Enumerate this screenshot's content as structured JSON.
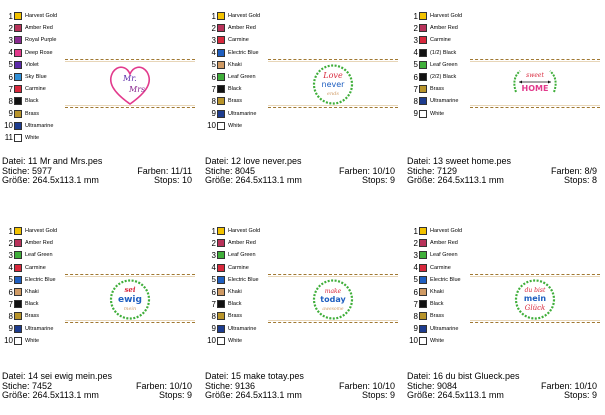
{
  "cards": [
    {
      "threads": [
        {
          "num": "1",
          "name": "Harvest Gold",
          "color": "#f2c200"
        },
        {
          "num": "2",
          "name": "Amber Red",
          "color": "#b8325a"
        },
        {
          "num": "3",
          "name": "Royal Purple",
          "color": "#8a2a8f"
        },
        {
          "num": "4",
          "name": "Deep Rose",
          "color": "#e23a8c"
        },
        {
          "num": "5",
          "name": "Violet",
          "color": "#5b2aa8"
        },
        {
          "num": "6",
          "name": "Sky Blue",
          "color": "#2f8fd6"
        },
        {
          "num": "7",
          "name": "Carmine",
          "color": "#d8283c"
        },
        {
          "num": "8",
          "name": "Black",
          "color": "#111111"
        },
        {
          "num": "9",
          "name": "Brass",
          "color": "#b8942a"
        },
        {
          "num": "10",
          "name": "Ultramarine",
          "color": "#1d3c8f"
        },
        {
          "num": "11",
          "name": "White",
          "color": "#ffffff"
        }
      ],
      "design_text": [
        "Mr.",
        "Mrs"
      ],
      "file_label": "Datei: 11 Mr and Mrs.pes",
      "stiche": "Stiche: 5977",
      "farben": "Farben: 11/11",
      "groesse": "Größe: 264.5x113.1 mm",
      "stops": "Stops: 10"
    },
    {
      "threads": [
        {
          "num": "1",
          "name": "Harvest Gold",
          "color": "#f2c200"
        },
        {
          "num": "2",
          "name": "Amber Red",
          "color": "#b8325a"
        },
        {
          "num": "3",
          "name": "Carmine",
          "color": "#d8283c"
        },
        {
          "num": "4",
          "name": "Electric Blue",
          "color": "#1f5fc0"
        },
        {
          "num": "5",
          "name": "Khaki",
          "color": "#cf9a64"
        },
        {
          "num": "6",
          "name": "Leaf Green",
          "color": "#3fae3a"
        },
        {
          "num": "7",
          "name": "Black",
          "color": "#111111"
        },
        {
          "num": "8",
          "name": "Brass",
          "color": "#b8942a"
        },
        {
          "num": "9",
          "name": "Ultramarine",
          "color": "#1d3c8f"
        },
        {
          "num": "10",
          "name": "White",
          "color": "#ffffff"
        }
      ],
      "design_text": [
        "Love",
        "never",
        "ends"
      ],
      "file_label": "Datei: 12 love never.pes",
      "stiche": "Stiche: 8045",
      "farben": "Farben: 10/10",
      "groesse": "Größe: 264.5x113.1 mm",
      "stops": "Stops: 9"
    },
    {
      "threads": [
        {
          "num": "1",
          "name": "Harvest Gold",
          "color": "#f2c200"
        },
        {
          "num": "2",
          "name": "Amber Red",
          "color": "#b8325a"
        },
        {
          "num": "3",
          "name": "Carmine",
          "color": "#d8283c"
        },
        {
          "num": "4",
          "name": "(1/2) Black",
          "color": "#111111"
        },
        {
          "num": "5",
          "name": "Leaf Green",
          "color": "#3fae3a"
        },
        {
          "num": "6",
          "name": "(2/2) Black",
          "color": "#111111"
        },
        {
          "num": "7",
          "name": "Brass",
          "color": "#b8942a"
        },
        {
          "num": "8",
          "name": "Ultramarine",
          "color": "#1d3c8f"
        },
        {
          "num": "9",
          "name": "White",
          "color": "#ffffff"
        }
      ],
      "design_text": [
        "sweet",
        "HOME"
      ],
      "file_label": "Datei: 13 sweet home.pes",
      "stiche": "Stiche: 7129",
      "farben": "Farben: 8/9",
      "groesse": "Größe: 264.5x113.1 mm",
      "stops": "Stops: 8"
    },
    {
      "threads": [
        {
          "num": "1",
          "name": "Harvest Gold",
          "color": "#f2c200"
        },
        {
          "num": "2",
          "name": "Amber Red",
          "color": "#b8325a"
        },
        {
          "num": "3",
          "name": "Leaf Green",
          "color": "#3fae3a"
        },
        {
          "num": "4",
          "name": "Carmine",
          "color": "#d8283c"
        },
        {
          "num": "5",
          "name": "Electric Blue",
          "color": "#1f5fc0"
        },
        {
          "num": "6",
          "name": "Khaki",
          "color": "#cf9a64"
        },
        {
          "num": "7",
          "name": "Black",
          "color": "#111111"
        },
        {
          "num": "8",
          "name": "Brass",
          "color": "#b8942a"
        },
        {
          "num": "9",
          "name": "Ultramarine",
          "color": "#1d3c8f"
        },
        {
          "num": "10",
          "name": "White",
          "color": "#ffffff"
        }
      ],
      "design_text": [
        "sei",
        "ewig",
        "mein"
      ],
      "file_label": "Datei: 14 sei ewig mein.pes",
      "stiche": "Stiche: 7452",
      "farben": "Farben: 10/10",
      "groesse": "Größe: 264.5x113.1 mm",
      "stops": "Stops: 9"
    },
    {
      "threads": [
        {
          "num": "1",
          "name": "Harvest Gold",
          "color": "#f2c200"
        },
        {
          "num": "2",
          "name": "Amber Red",
          "color": "#b8325a"
        },
        {
          "num": "3",
          "name": "Leaf Green",
          "color": "#3fae3a"
        },
        {
          "num": "4",
          "name": "Carmine",
          "color": "#d8283c"
        },
        {
          "num": "5",
          "name": "Electric Blue",
          "color": "#1f5fc0"
        },
        {
          "num": "6",
          "name": "Khaki",
          "color": "#cf9a64"
        },
        {
          "num": "7",
          "name": "Black",
          "color": "#111111"
        },
        {
          "num": "8",
          "name": "Brass",
          "color": "#b8942a"
        },
        {
          "num": "9",
          "name": "Ultramarine",
          "color": "#1d3c8f"
        },
        {
          "num": "10",
          "name": "White",
          "color": "#ffffff"
        }
      ],
      "design_text": [
        "make",
        "today",
        "awesome"
      ],
      "file_label": "Datei: 15 make totay.pes",
      "stiche": "Stiche: 9136",
      "farben": "Farben: 10/10",
      "groesse": "Größe: 264.5x113.1 mm",
      "stops": "Stops: 9"
    },
    {
      "threads": [
        {
          "num": "1",
          "name": "Harvest Gold",
          "color": "#f2c200"
        },
        {
          "num": "2",
          "name": "Amber Red",
          "color": "#b8325a"
        },
        {
          "num": "3",
          "name": "Leaf Green",
          "color": "#3fae3a"
        },
        {
          "num": "4",
          "name": "Carmine",
          "color": "#d8283c"
        },
        {
          "num": "5",
          "name": "Electric Blue",
          "color": "#1f5fc0"
        },
        {
          "num": "6",
          "name": "Khaki",
          "color": "#cf9a64"
        },
        {
          "num": "7",
          "name": "Black",
          "color": "#111111"
        },
        {
          "num": "8",
          "name": "Brass",
          "color": "#b8942a"
        },
        {
          "num": "9",
          "name": "Ultramarine",
          "color": "#1d3c8f"
        },
        {
          "num": "10",
          "name": "White",
          "color": "#ffffff"
        }
      ],
      "design_text": [
        "du bist",
        "mein",
        "Glück"
      ],
      "file_label": "Datei: 16 du bist Glueck.pes",
      "stiche": "Stiche: 9084",
      "farben": "Farben: 10/10",
      "groesse": "Größe: 264.5x113.1 mm",
      "stops": "Stops: 9"
    }
  ]
}
